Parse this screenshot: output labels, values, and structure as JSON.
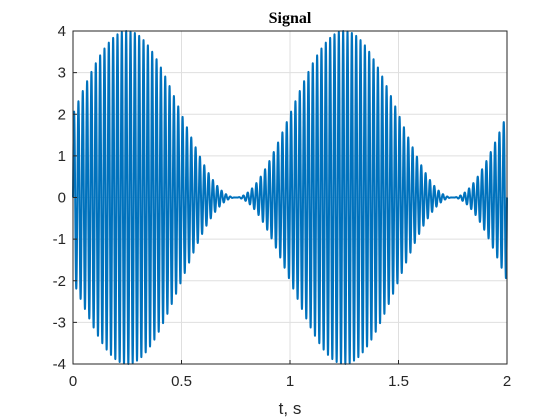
{
  "chart_data": {
    "type": "line",
    "title": "Signal",
    "xlabel": "t, s",
    "ylabel": "",
    "xlim": [
      0,
      2
    ],
    "ylim": [
      -4,
      4
    ],
    "xticks": [
      0,
      0.5,
      1,
      1.5,
      2
    ],
    "xtick_labels": [
      "0",
      "0.5",
      "1",
      "1.5",
      "2"
    ],
    "yticks": [
      -4,
      -3,
      -2,
      -1,
      0,
      1,
      2,
      3,
      4
    ],
    "ytick_labels": [
      "-4",
      "-3",
      "-2",
      "-1",
      "0",
      "1",
      "2",
      "3",
      "4"
    ],
    "grid": true,
    "series": [
      {
        "color": "#0072BD",
        "envelope_peak_times": [
          0.25,
          1.25
        ],
        "envelope_null_times": [
          0.75,
          1.75
        ],
        "peak_amplitude": 4,
        "envelope_frequency_hz": 1,
        "carrier_frequency_hz": 50,
        "x_start": 0,
        "x_end": 2
      }
    ]
  }
}
